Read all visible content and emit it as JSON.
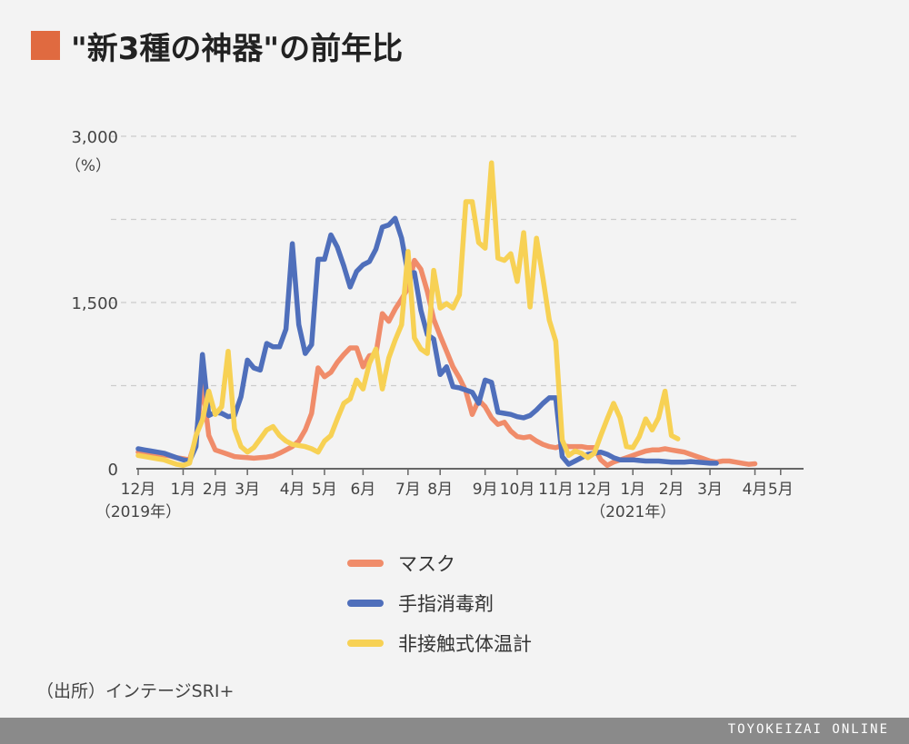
{
  "title": "\"新3種の神器\"の前年比",
  "source": "（出所）インテージSRI+",
  "brand": "TOYOKEIZAI ONLINE",
  "colors": {
    "title_marker": "#e06a40",
    "mask": "#f08c6a",
    "sanitizer": "#4f6fbb",
    "thermometer": "#f7d154",
    "grid": "#cccccc"
  },
  "chart_data": {
    "type": "line",
    "title": "",
    "ylabel": "（%）",
    "ylim": [
      0,
      3000
    ],
    "yticks": [
      {
        "value": 0,
        "label": "0"
      },
      {
        "value": 1500,
        "label": "1,500"
      },
      {
        "value": 3000,
        "label": "3,000"
      }
    ],
    "gridlines": [
      750,
      1500,
      2250,
      3000
    ],
    "x_index_range": [
      0,
      103
    ],
    "x_ticks": [
      {
        "index": 0,
        "label": "12月"
      },
      {
        "index": 7,
        "label": "1月"
      },
      {
        "index": 12,
        "label": "2月"
      },
      {
        "index": 17,
        "label": "3月"
      },
      {
        "index": 24,
        "label": "4月"
      },
      {
        "index": 29,
        "label": "5月"
      },
      {
        "index": 35,
        "label": "6月"
      },
      {
        "index": 42,
        "label": "7月"
      },
      {
        "index": 47,
        "label": "8月"
      },
      {
        "index": 54,
        "label": "9月"
      },
      {
        "index": 59,
        "label": "10月"
      },
      {
        "index": 65,
        "label": "11月"
      },
      {
        "index": 71,
        "label": "12月"
      },
      {
        "index": 77,
        "label": "1月"
      },
      {
        "index": 83,
        "label": "2月"
      },
      {
        "index": 89,
        "label": "3月"
      },
      {
        "index": 96,
        "label": "4月"
      },
      {
        "index": 100,
        "label": "5月"
      }
    ],
    "year_labels": [
      {
        "index": 0,
        "label": "（2019年）"
      },
      {
        "index": 77,
        "label": "（2021年）"
      }
    ],
    "series": [
      {
        "name": "マスク",
        "color": "#f08c6a",
        "values": [
          150,
          140,
          135,
          130,
          125,
          115,
          100,
          90,
          80,
          270,
          780,
          300,
          170,
          150,
          130,
          110,
          105,
          100,
          95,
          100,
          105,
          115,
          140,
          170,
          200,
          250,
          350,
          500,
          910,
          830,
          870,
          960,
          1030,
          1090,
          1090,
          920,
          1020,
          1030,
          1400,
          1330,
          1440,
          1530,
          1630,
          1880,
          1800,
          1600,
          1350,
          1200,
          1060,
          920,
          820,
          700,
          490,
          620,
          560,
          460,
          400,
          420,
          340,
          290,
          280,
          290,
          250,
          220,
          200,
          190,
          210,
          200,
          200,
          200,
          190,
          190,
          80,
          30,
          60,
          80,
          100,
          120,
          140,
          160,
          170,
          170,
          180,
          170,
          160,
          150,
          130,
          110,
          90,
          70,
          60,
          70,
          70,
          60,
          50,
          40,
          45
        ]
      },
      {
        "name": "手指消毒剤",
        "color": "#4f6fbb",
        "values": [
          180,
          170,
          160,
          150,
          140,
          120,
          100,
          80,
          70,
          200,
          1030,
          480,
          510,
          500,
          470,
          480,
          650,
          980,
          910,
          890,
          1130,
          1100,
          1100,
          1260,
          2030,
          1300,
          1040,
          1120,
          1890,
          1890,
          2110,
          2000,
          1830,
          1640,
          1780,
          1840,
          1870,
          1980,
          2180,
          2200,
          2260,
          2080,
          1760,
          1770,
          1430,
          1210,
          1170,
          850,
          920,
          740,
          730,
          710,
          690,
          590,
          800,
          780,
          510,
          500,
          490,
          470,
          460,
          480,
          530,
          590,
          640,
          640,
          110,
          40,
          70,
          100,
          130,
          140,
          150,
          130,
          100,
          80,
          80,
          80,
          75,
          70,
          70,
          70,
          65,
          60,
          60,
          60,
          65,
          60,
          55,
          50,
          50
        ]
      },
      {
        "name": "非接触式体温計",
        "color": "#f7d154",
        "values": [
          120,
          110,
          100,
          90,
          80,
          60,
          40,
          30,
          50,
          300,
          440,
          700,
          490,
          560,
          1060,
          360,
          200,
          150,
          190,
          270,
          350,
          380,
          300,
          250,
          220,
          210,
          200,
          180,
          150,
          250,
          300,
          450,
          590,
          630,
          800,
          720,
          950,
          1080,
          720,
          1000,
          1160,
          1300,
          1960,
          1180,
          1080,
          1040,
          1790,
          1450,
          1490,
          1450,
          1570,
          2410,
          2410,
          2040,
          1990,
          2760,
          1900,
          1880,
          1940,
          1690,
          2130,
          1460,
          2080,
          1720,
          1340,
          1150,
          260,
          120,
          160,
          140,
          100,
          140,
          300,
          450,
          590,
          460,
          200,
          190,
          290,
          450,
          350,
          460,
          700,
          300,
          270
        ]
      }
    ],
    "legend": {
      "position": "bottom",
      "entries": [
        "マスク",
        "手指消毒剤",
        "非接触式体温計"
      ]
    }
  }
}
